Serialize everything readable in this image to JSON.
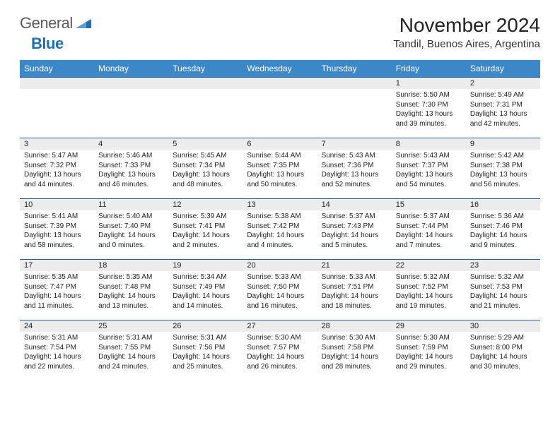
{
  "logo": {
    "text_general": "General",
    "text_blue": "Blue"
  },
  "title": "November 2024",
  "location": "Tandil, Buenos Aires, Argentina",
  "colors": {
    "header_bg": "#3b87c8",
    "header_text": "#ffffff",
    "daynum_bg": "#ececec",
    "row_border": "#2a5a88",
    "text": "#222222",
    "logo_gray": "#5a5a5a",
    "logo_blue": "#1f6fb2"
  },
  "weekdays": [
    "Sunday",
    "Monday",
    "Tuesday",
    "Wednesday",
    "Thursday",
    "Friday",
    "Saturday"
  ],
  "weeks": [
    [
      null,
      null,
      null,
      null,
      null,
      {
        "n": "1",
        "sr": "5:50 AM",
        "ss": "7:30 PM",
        "dl": "13 hours and 39 minutes."
      },
      {
        "n": "2",
        "sr": "5:49 AM",
        "ss": "7:31 PM",
        "dl": "13 hours and 42 minutes."
      }
    ],
    [
      {
        "n": "3",
        "sr": "5:47 AM",
        "ss": "7:32 PM",
        "dl": "13 hours and 44 minutes."
      },
      {
        "n": "4",
        "sr": "5:46 AM",
        "ss": "7:33 PM",
        "dl": "13 hours and 46 minutes."
      },
      {
        "n": "5",
        "sr": "5:45 AM",
        "ss": "7:34 PM",
        "dl": "13 hours and 48 minutes."
      },
      {
        "n": "6",
        "sr": "5:44 AM",
        "ss": "7:35 PM",
        "dl": "13 hours and 50 minutes."
      },
      {
        "n": "7",
        "sr": "5:43 AM",
        "ss": "7:36 PM",
        "dl": "13 hours and 52 minutes."
      },
      {
        "n": "8",
        "sr": "5:43 AM",
        "ss": "7:37 PM",
        "dl": "13 hours and 54 minutes."
      },
      {
        "n": "9",
        "sr": "5:42 AM",
        "ss": "7:38 PM",
        "dl": "13 hours and 56 minutes."
      }
    ],
    [
      {
        "n": "10",
        "sr": "5:41 AM",
        "ss": "7:39 PM",
        "dl": "13 hours and 58 minutes."
      },
      {
        "n": "11",
        "sr": "5:40 AM",
        "ss": "7:40 PM",
        "dl": "14 hours and 0 minutes."
      },
      {
        "n": "12",
        "sr": "5:39 AM",
        "ss": "7:41 PM",
        "dl": "14 hours and 2 minutes."
      },
      {
        "n": "13",
        "sr": "5:38 AM",
        "ss": "7:42 PM",
        "dl": "14 hours and 4 minutes."
      },
      {
        "n": "14",
        "sr": "5:37 AM",
        "ss": "7:43 PM",
        "dl": "14 hours and 5 minutes."
      },
      {
        "n": "15",
        "sr": "5:37 AM",
        "ss": "7:44 PM",
        "dl": "14 hours and 7 minutes."
      },
      {
        "n": "16",
        "sr": "5:36 AM",
        "ss": "7:46 PM",
        "dl": "14 hours and 9 minutes."
      }
    ],
    [
      {
        "n": "17",
        "sr": "5:35 AM",
        "ss": "7:47 PM",
        "dl": "14 hours and 11 minutes."
      },
      {
        "n": "18",
        "sr": "5:35 AM",
        "ss": "7:48 PM",
        "dl": "14 hours and 13 minutes."
      },
      {
        "n": "19",
        "sr": "5:34 AM",
        "ss": "7:49 PM",
        "dl": "14 hours and 14 minutes."
      },
      {
        "n": "20",
        "sr": "5:33 AM",
        "ss": "7:50 PM",
        "dl": "14 hours and 16 minutes."
      },
      {
        "n": "21",
        "sr": "5:33 AM",
        "ss": "7:51 PM",
        "dl": "14 hours and 18 minutes."
      },
      {
        "n": "22",
        "sr": "5:32 AM",
        "ss": "7:52 PM",
        "dl": "14 hours and 19 minutes."
      },
      {
        "n": "23",
        "sr": "5:32 AM",
        "ss": "7:53 PM",
        "dl": "14 hours and 21 minutes."
      }
    ],
    [
      {
        "n": "24",
        "sr": "5:31 AM",
        "ss": "7:54 PM",
        "dl": "14 hours and 22 minutes."
      },
      {
        "n": "25",
        "sr": "5:31 AM",
        "ss": "7:55 PM",
        "dl": "14 hours and 24 minutes."
      },
      {
        "n": "26",
        "sr": "5:31 AM",
        "ss": "7:56 PM",
        "dl": "14 hours and 25 minutes."
      },
      {
        "n": "27",
        "sr": "5:30 AM",
        "ss": "7:57 PM",
        "dl": "14 hours and 26 minutes."
      },
      {
        "n": "28",
        "sr": "5:30 AM",
        "ss": "7:58 PM",
        "dl": "14 hours and 28 minutes."
      },
      {
        "n": "29",
        "sr": "5:30 AM",
        "ss": "7:59 PM",
        "dl": "14 hours and 29 minutes."
      },
      {
        "n": "30",
        "sr": "5:29 AM",
        "ss": "8:00 PM",
        "dl": "14 hours and 30 minutes."
      }
    ]
  ],
  "labels": {
    "sunrise": "Sunrise:",
    "sunset": "Sunset:",
    "daylight": "Daylight:"
  }
}
